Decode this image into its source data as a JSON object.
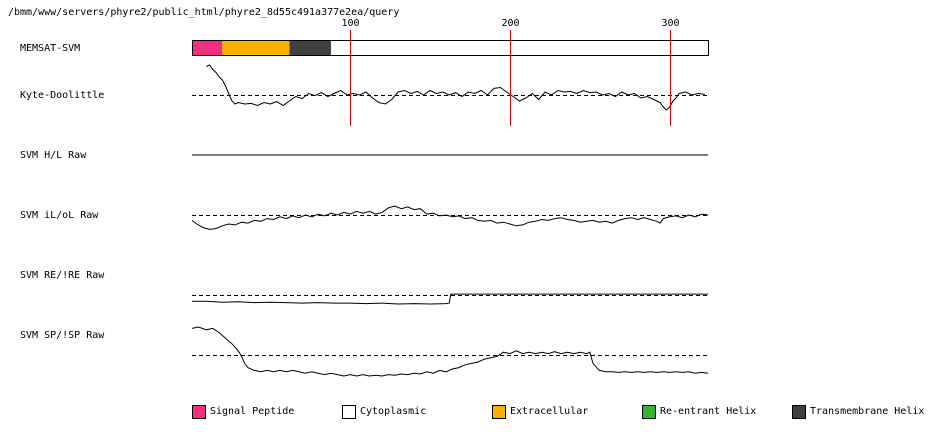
{
  "header": {
    "path": "/bmm/www/servers/phyre2/public_html/phyre2_8d55c491a377e2ea/query"
  },
  "chart_data": {
    "type": "line",
    "x_range": [
      1,
      324
    ],
    "ticks": [
      {
        "value": 100,
        "label": "100"
      },
      {
        "value": 200,
        "label": "200"
      },
      {
        "value": 300,
        "label": "300"
      }
    ],
    "memsat_track": {
      "label": "MEMSAT-SVM",
      "segments": [
        {
          "start": 1,
          "end": 20,
          "type": "Signal Peptide",
          "color": "#f0307f"
        },
        {
          "start": 20,
          "end": 62,
          "type": "Extracellular",
          "color": "#fbb000"
        },
        {
          "start": 62,
          "end": 88,
          "type": "Transmembrane Helix",
          "color": "#404040"
        },
        {
          "start": 88,
          "end": 324,
          "type": "Cytoplasmic",
          "color": "#ffffff"
        }
      ]
    },
    "series": [
      {
        "name": "Kyte-Doolittle",
        "baseline": true,
        "points": [
          [
            10,
            0.95
          ],
          [
            12,
            1.0
          ],
          [
            14,
            0.85
          ],
          [
            16,
            0.75
          ],
          [
            18,
            0.6
          ],
          [
            20,
            0.5
          ],
          [
            22,
            0.3
          ],
          [
            24,
            0.05
          ],
          [
            26,
            -0.2
          ],
          [
            28,
            -0.3
          ],
          [
            30,
            -0.25
          ],
          [
            34,
            -0.3
          ],
          [
            38,
            -0.28
          ],
          [
            42,
            -0.35
          ],
          [
            46,
            -0.25
          ],
          [
            50,
            -0.3
          ],
          [
            54,
            -0.22
          ],
          [
            58,
            -0.35
          ],
          [
            62,
            -0.2
          ],
          [
            66,
            -0.05
          ],
          [
            70,
            -0.12
          ],
          [
            74,
            0.05
          ],
          [
            78,
            -0.02
          ],
          [
            82,
            0.08
          ],
          [
            86,
            -0.05
          ],
          [
            90,
            0.05
          ],
          [
            94,
            0.15
          ],
          [
            98,
            0.0
          ],
          [
            102,
            0.05
          ],
          [
            106,
            0.0
          ],
          [
            110,
            0.1
          ],
          [
            114,
            -0.1
          ],
          [
            118,
            -0.25
          ],
          [
            122,
            -0.3
          ],
          [
            126,
            -0.15
          ],
          [
            130,
            0.1
          ],
          [
            134,
            0.15
          ],
          [
            138,
            0.05
          ],
          [
            142,
            0.12
          ],
          [
            146,
            0.0
          ],
          [
            150,
            0.15
          ],
          [
            154,
            0.05
          ],
          [
            158,
            0.1
          ],
          [
            162,
            0.0
          ],
          [
            166,
            0.08
          ],
          [
            170,
            -0.05
          ],
          [
            174,
            0.1
          ],
          [
            178,
            0.05
          ],
          [
            182,
            0.15
          ],
          [
            186,
            0.0
          ],
          [
            190,
            0.22
          ],
          [
            194,
            0.25
          ],
          [
            198,
            0.1
          ],
          [
            202,
            -0.05
          ],
          [
            206,
            -0.2
          ],
          [
            210,
            -0.1
          ],
          [
            214,
            0.05
          ],
          [
            218,
            -0.15
          ],
          [
            222,
            0.1
          ],
          [
            226,
            0.0
          ],
          [
            230,
            0.15
          ],
          [
            234,
            0.1
          ],
          [
            238,
            0.12
          ],
          [
            242,
            0.05
          ],
          [
            246,
            0.15
          ],
          [
            250,
            0.08
          ],
          [
            254,
            0.1
          ],
          [
            258,
            0.0
          ],
          [
            262,
            0.05
          ],
          [
            266,
            -0.05
          ],
          [
            270,
            0.1
          ],
          [
            274,
            0.0
          ],
          [
            278,
            0.05
          ],
          [
            282,
            -0.1
          ],
          [
            286,
            -0.05
          ],
          [
            290,
            -0.15
          ],
          [
            294,
            -0.25
          ],
          [
            296,
            -0.4
          ],
          [
            298,
            -0.5
          ],
          [
            300,
            -0.4
          ],
          [
            302,
            -0.2
          ],
          [
            304,
            -0.1
          ],
          [
            306,
            0.05
          ],
          [
            310,
            0.1
          ],
          [
            314,
            0.0
          ],
          [
            318,
            0.05
          ],
          [
            322,
            0.02
          ]
        ]
      },
      {
        "name": "SVM H/L Raw",
        "baseline": false,
        "points": [
          [
            1,
            0.0
          ],
          [
            324,
            0.0
          ]
        ]
      },
      {
        "name": "SVM iL/oL Raw",
        "baseline": true,
        "points": [
          [
            1,
            -0.3
          ],
          [
            4,
            -0.5
          ],
          [
            8,
            -0.7
          ],
          [
            12,
            -0.8
          ],
          [
            16,
            -0.75
          ],
          [
            20,
            -0.6
          ],
          [
            24,
            -0.5
          ],
          [
            28,
            -0.55
          ],
          [
            32,
            -0.4
          ],
          [
            36,
            -0.45
          ],
          [
            40,
            -0.3
          ],
          [
            44,
            -0.35
          ],
          [
            48,
            -0.2
          ],
          [
            52,
            -0.25
          ],
          [
            56,
            -0.1
          ],
          [
            60,
            -0.2
          ],
          [
            64,
            -0.05
          ],
          [
            68,
            -0.15
          ],
          [
            72,
            0.0
          ],
          [
            76,
            -0.1
          ],
          [
            80,
            0.05
          ],
          [
            84,
            -0.05
          ],
          [
            88,
            0.1
          ],
          [
            92,
            0.0
          ],
          [
            96,
            0.15
          ],
          [
            100,
            0.05
          ],
          [
            104,
            0.2
          ],
          [
            108,
            0.1
          ],
          [
            112,
            0.2
          ],
          [
            116,
            0.05
          ],
          [
            120,
            0.15
          ],
          [
            124,
            0.4
          ],
          [
            128,
            0.5
          ],
          [
            132,
            0.35
          ],
          [
            136,
            0.45
          ],
          [
            140,
            0.3
          ],
          [
            144,
            0.35
          ],
          [
            148,
            0.05
          ],
          [
            152,
            0.1
          ],
          [
            156,
            -0.05
          ],
          [
            160,
            0.0
          ],
          [
            164,
            -0.1
          ],
          [
            168,
            -0.05
          ],
          [
            172,
            -0.2
          ],
          [
            176,
            -0.15
          ],
          [
            180,
            -0.3
          ],
          [
            184,
            -0.35
          ],
          [
            188,
            -0.3
          ],
          [
            192,
            -0.45
          ],
          [
            196,
            -0.4
          ],
          [
            200,
            -0.5
          ],
          [
            204,
            -0.6
          ],
          [
            208,
            -0.55
          ],
          [
            212,
            -0.4
          ],
          [
            216,
            -0.35
          ],
          [
            220,
            -0.25
          ],
          [
            224,
            -0.3
          ],
          [
            228,
            -0.2
          ],
          [
            232,
            -0.15
          ],
          [
            236,
            -0.25
          ],
          [
            240,
            -0.3
          ],
          [
            244,
            -0.4
          ],
          [
            248,
            -0.35
          ],
          [
            252,
            -0.3
          ],
          [
            256,
            -0.4
          ],
          [
            260,
            -0.35
          ],
          [
            264,
            -0.45
          ],
          [
            268,
            -0.3
          ],
          [
            272,
            -0.2
          ],
          [
            276,
            -0.15
          ],
          [
            280,
            -0.25
          ],
          [
            284,
            -0.15
          ],
          [
            288,
            -0.25
          ],
          [
            292,
            -0.35
          ],
          [
            294,
            -0.45
          ],
          [
            296,
            -0.2
          ],
          [
            300,
            -0.1
          ],
          [
            304,
            -0.05
          ],
          [
            308,
            -0.15
          ],
          [
            312,
            0.0
          ],
          [
            316,
            -0.1
          ],
          [
            320,
            0.05
          ],
          [
            324,
            0.0
          ]
        ]
      },
      {
        "name": "SVM RE/!RE Raw",
        "baseline": true,
        "points": [
          [
            1,
            -0.35
          ],
          [
            10,
            -0.35
          ],
          [
            20,
            -0.4
          ],
          [
            30,
            -0.38
          ],
          [
            40,
            -0.42
          ],
          [
            50,
            -0.4
          ],
          [
            60,
            -0.42
          ],
          [
            70,
            -0.45
          ],
          [
            80,
            -0.42
          ],
          [
            90,
            -0.45
          ],
          [
            100,
            -0.45
          ],
          [
            110,
            -0.48
          ],
          [
            120,
            -0.45
          ],
          [
            130,
            -0.5
          ],
          [
            140,
            -0.48
          ],
          [
            150,
            -0.5
          ],
          [
            160,
            -0.48
          ],
          [
            162,
            -0.45
          ],
          [
            163,
            0.05
          ],
          [
            200,
            0.05
          ],
          [
            250,
            0.05
          ],
          [
            300,
            0.05
          ],
          [
            324,
            0.05
          ]
        ]
      },
      {
        "name": "SVM SP/!SP Raw",
        "baseline": true,
        "points": [
          [
            1,
            0.95
          ],
          [
            5,
            1.0
          ],
          [
            10,
            0.9
          ],
          [
            14,
            0.95
          ],
          [
            18,
            0.8
          ],
          [
            22,
            0.6
          ],
          [
            26,
            0.4
          ],
          [
            30,
            0.15
          ],
          [
            32,
            -0.05
          ],
          [
            34,
            -0.3
          ],
          [
            36,
            -0.45
          ],
          [
            40,
            -0.55
          ],
          [
            44,
            -0.6
          ],
          [
            48,
            -0.55
          ],
          [
            52,
            -0.6
          ],
          [
            56,
            -0.55
          ],
          [
            60,
            -0.6
          ],
          [
            64,
            -0.55
          ],
          [
            68,
            -0.6
          ],
          [
            72,
            -0.65
          ],
          [
            76,
            -0.6
          ],
          [
            80,
            -0.65
          ],
          [
            84,
            -0.7
          ],
          [
            88,
            -0.65
          ],
          [
            92,
            -0.7
          ],
          [
            96,
            -0.75
          ],
          [
            100,
            -0.7
          ],
          [
            104,
            -0.75
          ],
          [
            108,
            -0.7
          ],
          [
            112,
            -0.75
          ],
          [
            116,
            -0.72
          ],
          [
            120,
            -0.75
          ],
          [
            124,
            -0.7
          ],
          [
            128,
            -0.72
          ],
          [
            132,
            -0.68
          ],
          [
            136,
            -0.7
          ],
          [
            140,
            -0.65
          ],
          [
            144,
            -0.68
          ],
          [
            148,
            -0.6
          ],
          [
            152,
            -0.65
          ],
          [
            156,
            -0.55
          ],
          [
            160,
            -0.6
          ],
          [
            164,
            -0.5
          ],
          [
            168,
            -0.45
          ],
          [
            172,
            -0.35
          ],
          [
            176,
            -0.3
          ],
          [
            180,
            -0.25
          ],
          [
            184,
            -0.15
          ],
          [
            188,
            -0.1
          ],
          [
            192,
            -0.05
          ],
          [
            196,
            0.1
          ],
          [
            200,
            0.05
          ],
          [
            204,
            0.15
          ],
          [
            208,
            0.05
          ],
          [
            212,
            0.1
          ],
          [
            216,
            0.05
          ],
          [
            220,
            0.1
          ],
          [
            224,
            0.05
          ],
          [
            228,
            0.12
          ],
          [
            232,
            0.05
          ],
          [
            236,
            0.1
          ],
          [
            240,
            0.05
          ],
          [
            244,
            0.1
          ],
          [
            248,
            0.05
          ],
          [
            250,
            0.1
          ],
          [
            252,
            -0.3
          ],
          [
            256,
            -0.55
          ],
          [
            260,
            -0.6
          ],
          [
            264,
            -0.6
          ],
          [
            268,
            -0.62
          ],
          [
            272,
            -0.6
          ],
          [
            276,
            -0.62
          ],
          [
            280,
            -0.6
          ],
          [
            284,
            -0.62
          ],
          [
            288,
            -0.6
          ],
          [
            292,
            -0.62
          ],
          [
            296,
            -0.6
          ],
          [
            300,
            -0.62
          ],
          [
            304,
            -0.6
          ],
          [
            308,
            -0.62
          ],
          [
            312,
            -0.6
          ],
          [
            316,
            -0.65
          ],
          [
            320,
            -0.62
          ],
          [
            324,
            -0.65
          ]
        ]
      }
    ],
    "legend": [
      {
        "label": "Signal Peptide",
        "color": "#f0307f"
      },
      {
        "label": "Cytoplasmic",
        "color": "#ffffff"
      },
      {
        "label": "Extracellular",
        "color": "#fbb000"
      },
      {
        "label": "Re-entrant Helix",
        "color": "#2fb52f"
      },
      {
        "label": "Transmembrane Helix",
        "color": "#404040"
      }
    ],
    "colors": {
      "tick_line": "#e00000",
      "trace": "#000000",
      "baseline": "#000000"
    }
  }
}
